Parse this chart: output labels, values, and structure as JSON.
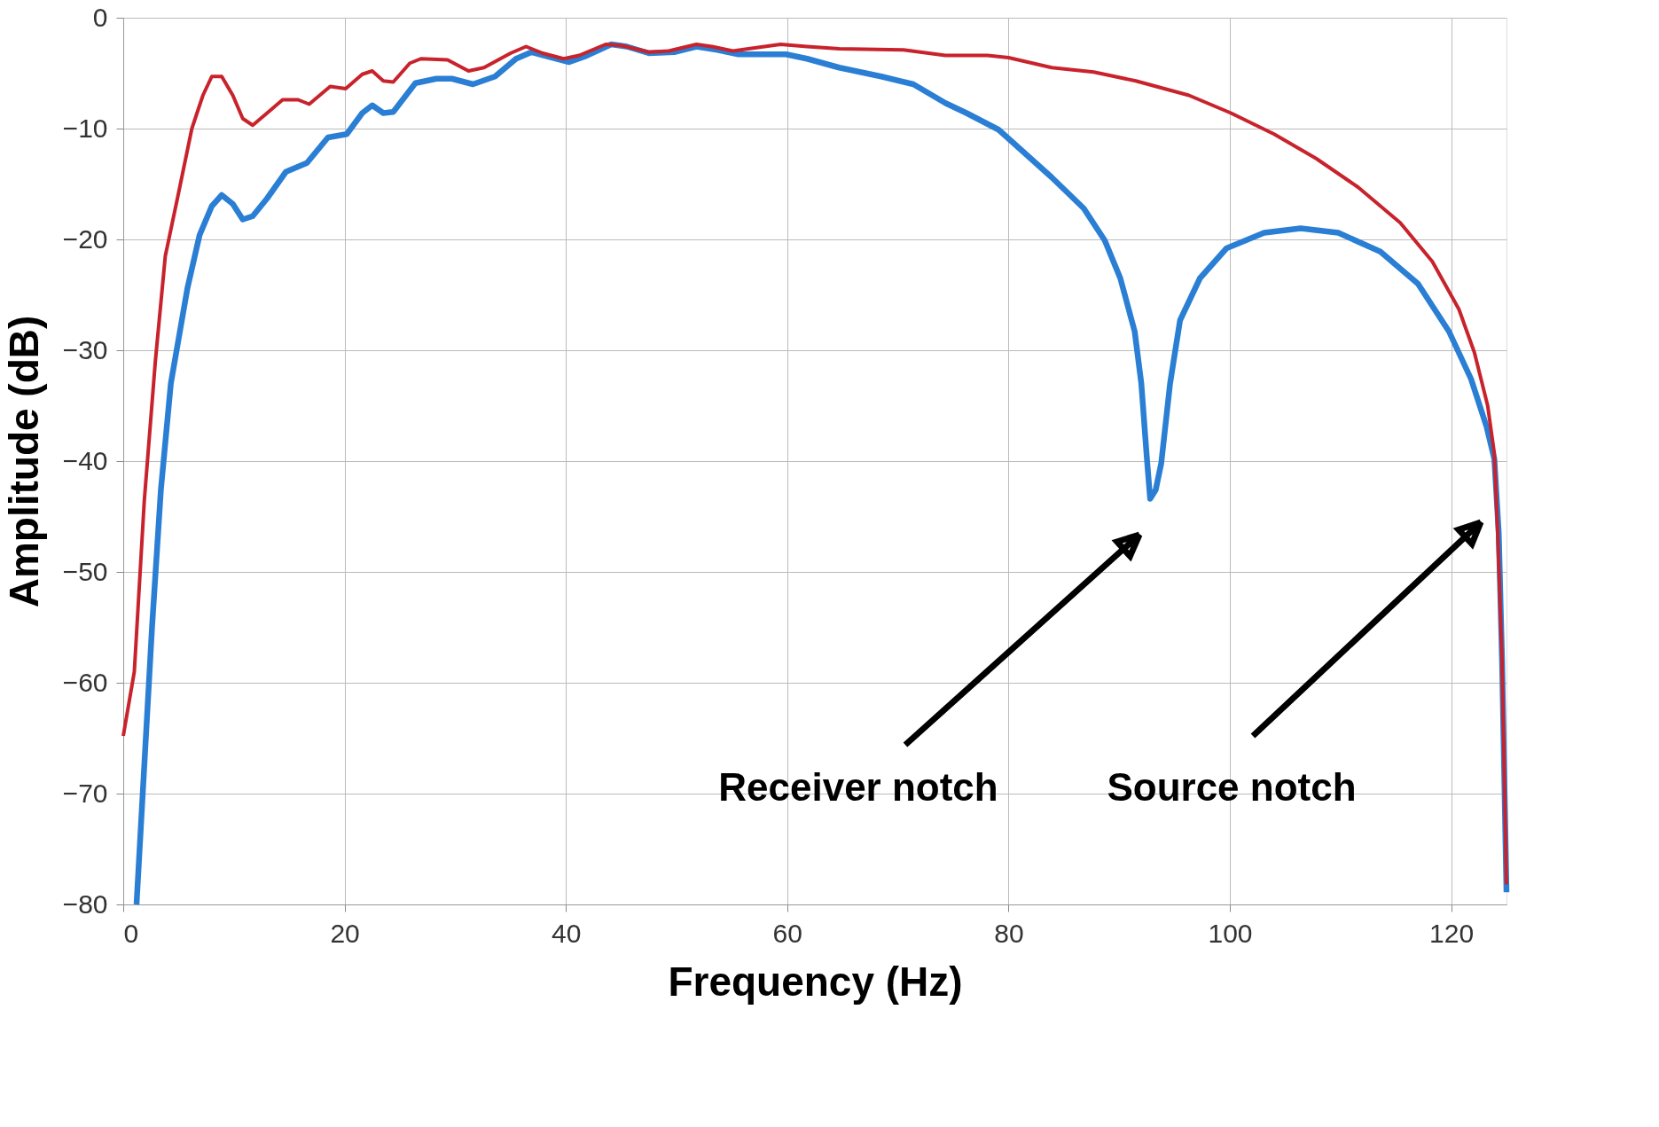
{
  "chart_data": {
    "type": "line",
    "xlabel": "Frequency (Hz)",
    "ylabel": "Amplitude (dB)",
    "xlim": [
      0,
      125
    ],
    "xticks": [
      0,
      20,
      40,
      60,
      80,
      100,
      120
    ],
    "ylim": [
      -80,
      0
    ],
    "yticks": [
      -80,
      -70,
      -60,
      -50,
      -40,
      -30,
      -20,
      -10,
      0
    ],
    "grid": true,
    "legend": false,
    "marker": "none",
    "line_style": "solid",
    "series": [
      {
        "color": "#c8232c",
        "x": [
          0,
          1,
          1.9,
          2.9,
          3.8,
          5,
          6.2,
          7.2,
          8,
          8.9,
          9.9,
          10.8,
          11.7,
          13,
          14.4,
          15.8,
          16.8,
          18.7,
          20.1,
          21.6,
          22.5,
          23.5,
          24.4,
          25.9,
          26.9,
          29.3,
          31.2,
          32.6,
          35,
          36.4,
          37.9,
          39.8,
          41.2,
          43.6,
          45,
          47.5,
          49.3,
          51.8,
          53.2,
          55.1,
          56.5,
          59.4,
          61.8,
          64.7,
          70.5,
          74.3,
          78.1,
          80,
          83.9,
          87.7,
          91.5,
          96.3,
          100.1,
          104,
          107.8,
          111.6,
          115.4,
          118.3,
          120.7,
          122.1,
          123.3,
          123.9,
          124.2,
          124.6,
          125
        ],
        "values": [
          -64.8,
          -59,
          -43.6,
          -31,
          -21.5,
          -15.8,
          -10,
          -7,
          -5.3,
          -5.3,
          -7,
          -9.1,
          -9.7,
          -8.6,
          -7.4,
          -7.4,
          -7.8,
          -6.2,
          -6.4,
          -5.1,
          -4.8,
          -5.7,
          -5.8,
          -4.1,
          -3.7,
          -3.8,
          -4.8,
          -4.5,
          -3.2,
          -2.6,
          -3.2,
          -3.7,
          -3.4,
          -2.4,
          -2.5,
          -3.1,
          -3,
          -2.4,
          -2.6,
          -3,
          -2.8,
          -2.4,
          -2.6,
          -2.8,
          -2.9,
          -3.4,
          -3.4,
          -3.6,
          -4.5,
          -4.9,
          -5.7,
          -7,
          -8.6,
          -10.5,
          -12.7,
          -15.3,
          -18.5,
          -22,
          -26.3,
          -30.2,
          -35,
          -39.3,
          -46.5,
          -58,
          -78.2
        ]
      },
      {
        "color": "#2a7fd4",
        "x": [
          1.2,
          1.9,
          2.6,
          3.4,
          4.3,
          5.8,
          6.9,
          8,
          8.9,
          9.9,
          10.8,
          11.7,
          13,
          14.7,
          16.6,
          18.5,
          20.2,
          21.6,
          22.5,
          23.5,
          24.4,
          26.4,
          28.3,
          29.7,
          31.6,
          33.6,
          35.5,
          36.9,
          38.4,
          40.3,
          41.7,
          44.1,
          45.5,
          47.5,
          49.8,
          51.8,
          53.7,
          55.6,
          58,
          59.9,
          61.8,
          64.7,
          68.5,
          71.4,
          74.3,
          76.2,
          79.1,
          81,
          83.9,
          86.8,
          88.7,
          90.1,
          91.4,
          92,
          92.5,
          92.8,
          93.3,
          93.8,
          94.6,
          95.5,
          97.3,
          99.7,
          103.1,
          106.4,
          109.8,
          113.6,
          117,
          119.8,
          121.8,
          123.2,
          123.9,
          124.3,
          124.6,
          125
        ],
        "values": [
          -80,
          -67.5,
          -55,
          -42.6,
          -33,
          -24.4,
          -19.6,
          -17,
          -16,
          -16.8,
          -18.2,
          -17.9,
          -16.3,
          -13.9,
          -13.1,
          -10.8,
          -10.5,
          -8.6,
          -7.9,
          -8.6,
          -8.5,
          -5.9,
          -5.5,
          -5.5,
          -6,
          -5.3,
          -3.7,
          -3.1,
          -3.5,
          -4,
          -3.5,
          -2.4,
          -2.6,
          -3.2,
          -3.1,
          -2.6,
          -2.9,
          -3.3,
          -3.3,
          -3.3,
          -3.7,
          -4.5,
          -5.3,
          -6,
          -7.7,
          -8.6,
          -10.1,
          -11.8,
          -14.4,
          -17.2,
          -20.1,
          -23.5,
          -28.3,
          -33,
          -39.7,
          -43.4,
          -42.6,
          -40.2,
          -33,
          -27.3,
          -23.5,
          -20.8,
          -19.4,
          -19,
          -19.4,
          -21.1,
          -24,
          -28.3,
          -32.6,
          -36.9,
          -39.8,
          -46.5,
          -58,
          -78.9
        ]
      }
    ],
    "annotations": [
      "Receiver notch",
      "Source notch"
    ]
  }
}
